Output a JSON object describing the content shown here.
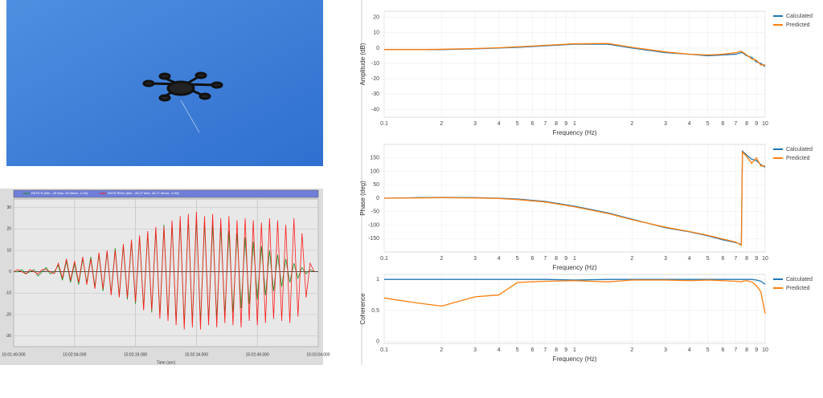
{
  "chart_data": [
    {
      "type": "line",
      "xlabel": "Time (sec)",
      "x": [
        0,
        1,
        2,
        3,
        4,
        5,
        6,
        7,
        8,
        9,
        10,
        11,
        12,
        13,
        14,
        15,
        16,
        17,
        18,
        19,
        20,
        21,
        22,
        23,
        24,
        25,
        26,
        27,
        28,
        29,
        30,
        31,
        32,
        33,
        34,
        35,
        36,
        37,
        38,
        39,
        40,
        41,
        42,
        43,
        44,
        45,
        46,
        47,
        48,
        49,
        50,
        51,
        52,
        53,
        54,
        55,
        56,
        57,
        58,
        59,
        60,
        61,
        62,
        63,
        64,
        65,
        66,
        67,
        68,
        69,
        70,
        71,
        72,
        73,
        74
      ],
      "series": [
        {
          "name": "RATE.R (Min: -25 Max: 25 Mean: -0.04)",
          "color": "#1e8a1e",
          "values": [
            0,
            0,
            1,
            -1,
            0,
            1,
            -2,
            0,
            2,
            -1,
            0,
            3,
            -4,
            5,
            -5,
            4,
            -6,
            6,
            -5,
            7,
            -7,
            8,
            -9,
            9,
            -10,
            11,
            -11,
            12,
            -13,
            14,
            -15,
            16,
            -17,
            18,
            -19,
            20,
            -21,
            22,
            -22,
            23,
            -24,
            24,
            -25,
            25,
            -24,
            25,
            -24,
            23,
            -23,
            22,
            -22,
            21,
            -20,
            19,
            -19,
            18,
            -17,
            16,
            -15,
            14,
            -13,
            12,
            -11,
            10,
            -9,
            8,
            -7,
            6,
            -5,
            4,
            -3,
            2,
            -1,
            1,
            0
          ]
        },
        {
          "name": "RATE.RDes (Min: -28.27 Max: 28.17 Mean: -0.05)",
          "color": "#ff1a1a",
          "values": [
            0,
            1,
            0,
            -1,
            1,
            0,
            -1,
            1,
            1,
            0,
            -1,
            4,
            -3,
            6,
            -4,
            5,
            -5,
            7,
            -6,
            6,
            -8,
            9,
            -8,
            10,
            -11,
            10,
            -12,
            13,
            -12,
            15,
            -14,
            17,
            -18,
            19,
            -18,
            21,
            -22,
            21,
            -23,
            24,
            -25,
            26,
            -27,
            27,
            -26,
            28,
            -27,
            26,
            -25,
            27,
            -26,
            25,
            -24,
            26,
            -25,
            24,
            -26,
            25,
            -23,
            24,
            -25,
            23,
            -24,
            25,
            -22,
            24,
            -23,
            22,
            -24,
            25,
            -21,
            18,
            -12,
            4,
            0
          ]
        }
      ],
      "xlim": [
        0,
        75
      ],
      "ylim": [
        -35,
        34
      ],
      "xticks": [
        {
          "value": 0,
          "label": "15:01:49.000"
        },
        {
          "value": 15,
          "label": "15:02:04.000"
        },
        {
          "value": 30,
          "label": "15:02:19.000"
        },
        {
          "value": 45,
          "label": "15:02:34.000"
        },
        {
          "value": 60,
          "label": "15:02:49.000"
        },
        {
          "value": 75,
          "label": "15:03:04.000"
        }
      ],
      "yticks": [
        -30,
        -20,
        -10,
        0,
        10,
        20,
        30
      ],
      "grid": true,
      "legend": "top"
    },
    {
      "type": "line",
      "xlabel": "Frequency (Hz)",
      "ylabel": "Amplitude (dB)",
      "xscale": "log",
      "x": [
        0.1,
        0.15,
        0.2,
        0.3,
        0.4,
        0.5,
        0.7,
        1,
        1.5,
        2,
        3,
        4,
        5,
        6,
        7,
        7.5,
        7.6,
        8,
        8.5,
        9,
        9.5,
        10
      ],
      "series": [
        {
          "name": "Calculated",
          "color": "#1f77b4",
          "values": [
            -1,
            -1,
            -1,
            -0.5,
            0,
            0.5,
            1.5,
            2.5,
            2.5,
            0,
            -3,
            -4,
            -5,
            -4.5,
            -4,
            -3,
            -3,
            -5,
            -6,
            -9,
            -10,
            -12
          ]
        },
        {
          "name": "Predicted",
          "color": "#ff7f0e",
          "values": [
            -1,
            -1,
            -0.8,
            -0.3,
            0.2,
            0.8,
            1.8,
            2.8,
            3,
            0.5,
            -2.5,
            -4,
            -4.5,
            -4,
            -3,
            -2,
            -2.5,
            -4.5,
            -7,
            -8,
            -11,
            -11
          ]
        }
      ],
      "xlim": [
        0.1,
        10
      ],
      "ylim": [
        -45,
        24
      ],
      "xticks": [
        0.1,
        {
          "value": 0.2,
          "label": "2"
        },
        {
          "value": 0.3,
          "label": "3"
        },
        {
          "value": 0.4,
          "label": "4"
        },
        {
          "value": 0.5,
          "label": "5"
        },
        {
          "value": 0.6,
          "label": "6"
        },
        {
          "value": 0.7,
          "label": "7"
        },
        {
          "value": 0.8,
          "label": "8"
        },
        {
          "value": 0.9,
          "label": "9"
        },
        1,
        2,
        3,
        4,
        5,
        6,
        7,
        8,
        9,
        10
      ],
      "yticks": [
        -40,
        -30,
        -20,
        -10,
        0,
        10,
        20
      ],
      "grid": true,
      "legend": "right"
    },
    {
      "type": "line",
      "xlabel": "Frequency (Hz)",
      "ylabel": "Phase (deg)",
      "xscale": "log",
      "x": [
        0.1,
        0.15,
        0.2,
        0.3,
        0.4,
        0.5,
        0.7,
        1,
        1.5,
        2,
        3,
        4,
        5,
        6,
        7,
        7.5,
        7.6,
        8,
        8.5,
        9,
        9.5,
        10
      ],
      "series": [
        {
          "name": "Calculated",
          "color": "#1f77b4",
          "values": [
            0,
            2,
            3,
            2,
            0,
            -3,
            -12,
            -30,
            -55,
            -78,
            -110,
            -125,
            -140,
            -155,
            -165,
            -172,
            175,
            160,
            145,
            140,
            125,
            115
          ]
        },
        {
          "name": "Predicted",
          "color": "#ff7f0e",
          "values": [
            0,
            1,
            2,
            1,
            -1,
            -5,
            -14,
            -32,
            -57,
            -80,
            -108,
            -124,
            -138,
            -152,
            -163,
            -175,
            172,
            155,
            130,
            150,
            120,
            120
          ]
        }
      ],
      "xlim": [
        0.1,
        10
      ],
      "ylim": [
        -200,
        200
      ],
      "xticks": [
        0.1,
        {
          "value": 0.2,
          "label": "2"
        },
        {
          "value": 0.3,
          "label": "3"
        },
        {
          "value": 0.4,
          "label": "4"
        },
        {
          "value": 0.5,
          "label": "5"
        },
        {
          "value": 0.6,
          "label": "6"
        },
        {
          "value": 0.7,
          "label": "7"
        },
        {
          "value": 0.8,
          "label": "8"
        },
        {
          "value": 0.9,
          "label": "9"
        },
        1,
        2,
        3,
        4,
        5,
        6,
        7,
        8,
        9,
        10
      ],
      "yticks": [
        -150,
        -100,
        -50,
        0,
        50,
        100,
        150
      ],
      "grid": true,
      "legend": "right"
    },
    {
      "type": "line",
      "xlabel": "Frequency (Hz)",
      "ylabel": "Coherence",
      "xscale": "log",
      "x": [
        0.1,
        0.15,
        0.2,
        0.3,
        0.4,
        0.5,
        0.7,
        1,
        1.5,
        2,
        3,
        4,
        5,
        6,
        7,
        7.5,
        7.6,
        8,
        8.5,
        9,
        9.5,
        10
      ],
      "series": [
        {
          "name": "Calculated",
          "color": "#1f77b4",
          "values": [
            1,
            1,
            1,
            1,
            1,
            1,
            1,
            0.99,
            1,
            1,
            1,
            1,
            1,
            1,
            1,
            1,
            1,
            1,
            1,
            0.99,
            0.97,
            0.92
          ]
        },
        {
          "name": "Predicted",
          "color": "#ff7f0e",
          "values": [
            0.7,
            0.62,
            0.57,
            0.72,
            0.75,
            0.95,
            0.97,
            0.98,
            0.96,
            0.99,
            0.99,
            0.98,
            0.99,
            0.98,
            0.97,
            0.96,
            0.97,
            0.98,
            0.96,
            0.9,
            0.8,
            0.45
          ]
        }
      ],
      "xlim": [
        0.1,
        10
      ],
      "ylim": [
        -0.03,
        1.08
      ],
      "xticks": [
        0.1,
        {
          "value": 0.2,
          "label": "2"
        },
        {
          "value": 0.3,
          "label": "3"
        },
        {
          "value": 0.4,
          "label": "4"
        },
        {
          "value": 0.5,
          "label": "5"
        },
        {
          "value": 0.6,
          "label": "6"
        },
        {
          "value": 0.7,
          "label": "7"
        },
        {
          "value": 0.8,
          "label": "8"
        },
        {
          "value": 0.9,
          "label": "9"
        },
        1,
        2,
        3,
        4,
        5,
        6,
        7,
        8,
        9,
        10
      ],
      "yticks": [
        0,
        0.5,
        1
      ],
      "grid": true,
      "legend": "right"
    }
  ]
}
